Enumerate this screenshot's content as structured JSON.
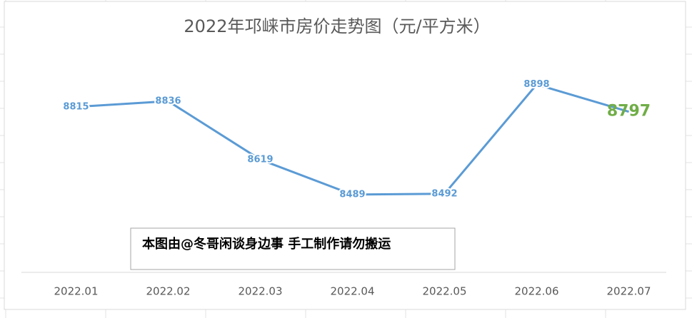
{
  "chart_data": {
    "type": "line",
    "title": "2022年邛崃市房价走势图（元/平方米）",
    "categories": [
      "2022.01",
      "2022.02",
      "2022.03",
      "2022.04",
      "2022.05",
      "2022.06",
      "2022.07"
    ],
    "series": [
      {
        "name": "房价",
        "color": "#5b9bd5",
        "values": [
          8815,
          8836,
          8619,
          8489,
          8492,
          8898,
          8797
        ]
      }
    ],
    "ylim": [
      8200,
      9000
    ],
    "annotation": "本图由@冬哥闲谈身边事 手工制作请勿搬运"
  }
}
